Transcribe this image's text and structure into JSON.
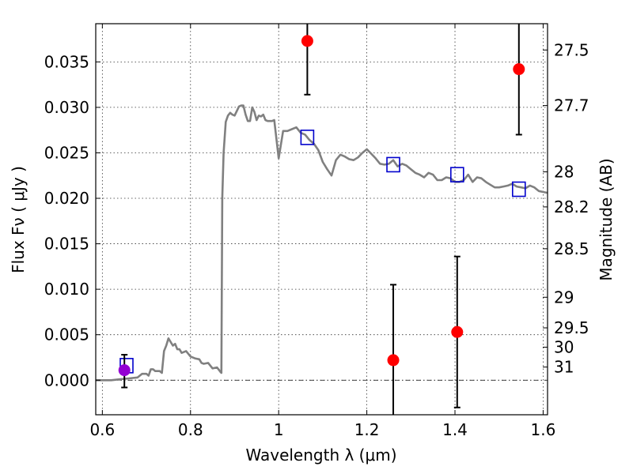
{
  "chart_data": {
    "type": "line",
    "xlabel": "Wavelength  λ (μm)",
    "ylabel": "Flux  Fν  ( μJy )",
    "y2label": "Magnitude (AB)",
    "xlim": [
      0.585,
      1.61
    ],
    "ylim": [
      -0.0038,
      0.0392
    ],
    "grid": true,
    "x_ticks": [
      0.6,
      0.8,
      1.0,
      1.2,
      1.4,
      1.6
    ],
    "x_tick_labels": [
      "0.6",
      "0.8",
      "1",
      "1.2",
      "1.4",
      "1.6"
    ],
    "y_ticks": [
      0.0,
      0.005,
      0.01,
      0.015,
      0.02,
      0.025,
      0.03,
      0.035
    ],
    "y_tick_labels": [
      "0.000",
      "0.005",
      "0.010",
      "0.015",
      "0.020",
      "0.025",
      "0.030",
      "0.035"
    ],
    "magnitude_ticks": [
      27.5,
      27.7,
      28,
      28.2,
      28.5,
      29,
      29.5,
      30,
      31
    ],
    "magnitude_tick_labels": [
      "27.5",
      "27.7",
      "28",
      "28.2",
      "28.5",
      "29",
      "29.5",
      "30",
      "31"
    ],
    "zero_line": 0.0,
    "colors": {
      "model": "#808080",
      "observed": "#ff0000",
      "model_photometry": "#0000cc",
      "extra_point": "#9400d3"
    },
    "series": [
      {
        "type": "line",
        "x": [
          0.585,
          0.6,
          0.62,
          0.64,
          0.66,
          0.68,
          0.69,
          0.7,
          0.705,
          0.71,
          0.715,
          0.72,
          0.73,
          0.735,
          0.74,
          0.745,
          0.75,
          0.76,
          0.765,
          0.77,
          0.775,
          0.78,
          0.79,
          0.8,
          0.81,
          0.82,
          0.825,
          0.83,
          0.84,
          0.85,
          0.86,
          0.865,
          0.868,
          0.87,
          0.872,
          0.875,
          0.88,
          0.885,
          0.89,
          0.895,
          0.9,
          0.905,
          0.91,
          0.915,
          0.92,
          0.925,
          0.93,
          0.935,
          0.94,
          0.945,
          0.95,
          0.955,
          0.96,
          0.965,
          0.97,
          0.975,
          0.98,
          0.985,
          0.99,
          0.995,
          1.0,
          1.01,
          1.02,
          1.03,
          1.04,
          1.05,
          1.06,
          1.07,
          1.08,
          1.09,
          1.1,
          1.11,
          1.12,
          1.13,
          1.14,
          1.15,
          1.16,
          1.17,
          1.18,
          1.19,
          1.2,
          1.21,
          1.22,
          1.23,
          1.24,
          1.25,
          1.26,
          1.27,
          1.28,
          1.29,
          1.3,
          1.31,
          1.32,
          1.33,
          1.34,
          1.35,
          1.36,
          1.37,
          1.38,
          1.39,
          1.4,
          1.41,
          1.42,
          1.43,
          1.44,
          1.45,
          1.46,
          1.47,
          1.48,
          1.49,
          1.5,
          1.51,
          1.52,
          1.53,
          1.54,
          1.55,
          1.56,
          1.57,
          1.58,
          1.59,
          1.6,
          1.61
        ],
        "y": [
          0.0,
          0.0,
          0.0,
          0.0001,
          0.0002,
          0.0003,
          0.0007,
          0.0007,
          0.0005,
          0.0012,
          0.0012,
          0.001,
          0.001,
          0.0008,
          0.0032,
          0.0038,
          0.0046,
          0.0038,
          0.004,
          0.0034,
          0.0034,
          0.003,
          0.0032,
          0.0026,
          0.0024,
          0.0023,
          0.0019,
          0.0018,
          0.0019,
          0.0013,
          0.0014,
          0.0011,
          0.0009,
          0.0008,
          0.02,
          0.025,
          0.0284,
          0.0291,
          0.0294,
          0.0292,
          0.0291,
          0.0296,
          0.0301,
          0.0302,
          0.0302,
          0.0292,
          0.0285,
          0.0285,
          0.03,
          0.0295,
          0.0286,
          0.0291,
          0.029,
          0.0292,
          0.0286,
          0.0285,
          0.0285,
          0.0285,
          0.0286,
          0.0265,
          0.0244,
          0.0274,
          0.0274,
          0.0276,
          0.0278,
          0.0272,
          0.027,
          0.0264,
          0.026,
          0.0253,
          0.024,
          0.0232,
          0.0225,
          0.0242,
          0.0248,
          0.0246,
          0.0243,
          0.0242,
          0.0245,
          0.025,
          0.0254,
          0.0249,
          0.0244,
          0.0238,
          0.0237,
          0.0238,
          0.0242,
          0.0235,
          0.0238,
          0.0236,
          0.0232,
          0.0228,
          0.0226,
          0.0223,
          0.0228,
          0.0226,
          0.022,
          0.022,
          0.0223,
          0.0222,
          0.0218,
          0.0218,
          0.022,
          0.0226,
          0.0218,
          0.0223,
          0.0222,
          0.0218,
          0.0215,
          0.0212,
          0.0212,
          0.0213,
          0.0214,
          0.0216,
          0.0213,
          0.0212,
          0.0211,
          0.0214,
          0.0212,
          0.0208,
          0.0207,
          0.0206
        ]
      },
      {
        "type": "scatter-errorbar",
        "x": [
          1.065,
          1.26,
          1.405,
          1.545,
          0.65
        ],
        "y": [
          0.0373,
          0.0022,
          0.0053,
          0.0342,
          0.001
        ],
        "yerr_low": [
          0.0059,
          0.0094,
          0.0083,
          0.0072,
          0.0018
        ],
        "yerr_high": [
          0.0059,
          0.0083,
          0.0083,
          0.0072,
          0.0018
        ]
      },
      {
        "type": "scatter-square",
        "x": [
          0.655,
          1.065,
          1.26,
          1.405,
          1.545
        ],
        "y": [
          0.0016,
          0.0267,
          0.0237,
          0.0226,
          0.021
        ]
      },
      {
        "type": "scatter",
        "x": [
          0.65
        ],
        "y": [
          0.0011
        ]
      }
    ]
  }
}
